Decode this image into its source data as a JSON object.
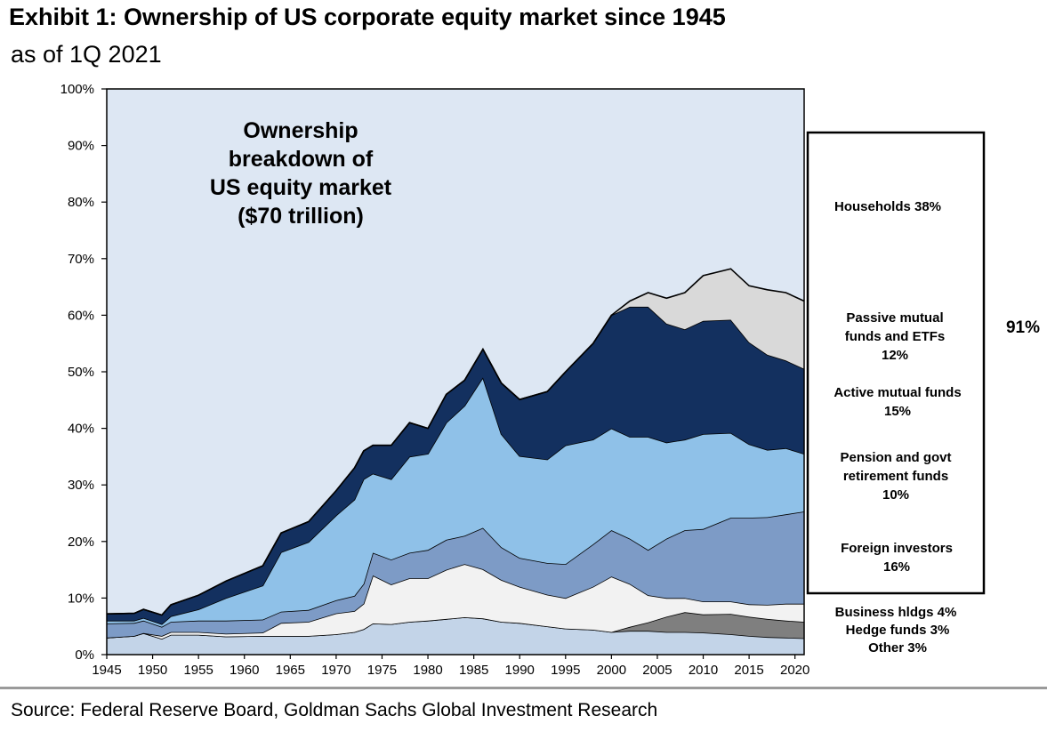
{
  "header": {
    "title": "Exhibit 1: Ownership of US corporate equity market since 1945",
    "subtitle": "as of 1Q 2021"
  },
  "source": "Source: Federal Reserve Board, Goldman Sachs Global Investment Research",
  "chart_data": {
    "type": "area",
    "stacked": true,
    "inset_text": [
      "Ownership",
      "breakdown  of",
      "US equity market",
      "($70 trillion)"
    ],
    "xlim": [
      1945,
      2021
    ],
    "ylim": [
      0,
      100
    ],
    "y_ticks": [
      "0%",
      "10%",
      "20%",
      "30%",
      "40%",
      "50%",
      "60%",
      "70%",
      "80%",
      "90%",
      "100%"
    ],
    "x_ticks": [
      "1945",
      "1950",
      "1955",
      "1960",
      "1965",
      "1970",
      "1975",
      "1980",
      "1985",
      "1990",
      "1995",
      "2000",
      "2005",
      "2010",
      "2015",
      "2020"
    ],
    "background_area": "Households 38%",
    "bracket": {
      "label": "91%"
    },
    "colors": {
      "plot_bg": "#dde7f3",
      "other": "#c3d4e8",
      "hedge_funds": "#7f7f7f",
      "business_hldgs": "#f2f2f2",
      "foreign": "#7d9bc6",
      "pension": "#8fc1e8",
      "active": "#13305f",
      "passive": "#d9d9d9"
    },
    "x": [
      1945,
      1948,
      1949,
      1951,
      1952,
      1955,
      1958,
      1962,
      1964,
      1967,
      1970,
      1972,
      1973,
      1974,
      1976,
      1978,
      1980,
      1982,
      1984,
      1986,
      1988,
      1990,
      1993,
      1995,
      1998,
      2000,
      2002,
      2004,
      2006,
      2008,
      2010,
      2013,
      2015,
      2017,
      2019,
      2021
    ],
    "series": [
      {
        "name": "Other 3%",
        "key": "other",
        "values": [
          3.0,
          3.3,
          3.8,
          2.8,
          3.5,
          3.5,
          3.2,
          3.3,
          3.3,
          3.3,
          3.6,
          4.0,
          4.5,
          5.5,
          5.4,
          5.8,
          6.0,
          6.3,
          6.6,
          6.4,
          5.8,
          5.6,
          5.0,
          4.6,
          4.4,
          4.0,
          4.2,
          4.2,
          4.0,
          4.0,
          3.9,
          3.6,
          3.3,
          3.1,
          3.0,
          2.9
        ]
      },
      {
        "name": "Hedge funds 3%",
        "key": "hedge_funds",
        "values": [
          0,
          0,
          0,
          0,
          0,
          0,
          0,
          0,
          0,
          0,
          0,
          0,
          0,
          0,
          0,
          0,
          0,
          0,
          0,
          0,
          0,
          0,
          0,
          0,
          0,
          0,
          0.7,
          1.5,
          2.7,
          3.5,
          3.2,
          3.6,
          3.4,
          3.2,
          3.0,
          2.9
        ]
      },
      {
        "name": "Business hldgs 4%",
        "key": "business_hldgs",
        "values": [
          0,
          0,
          0,
          0.5,
          0.5,
          0.5,
          0.5,
          0.6,
          2.3,
          2.5,
          3.7,
          3.7,
          4.5,
          8.5,
          7.0,
          7.7,
          7.5,
          8.7,
          9.4,
          8.7,
          7.4,
          6.4,
          5.6,
          5.4,
          7.6,
          9.8,
          7.6,
          4.8,
          3.3,
          2.5,
          2.3,
          2.2,
          2.2,
          2.5,
          3.0,
          3.2
        ]
      },
      {
        "name": "Foreign investors 16%",
        "key": "foreign",
        "values": [
          2.5,
          2.3,
          2.2,
          1.6,
          1.8,
          2.0,
          2.3,
          2.3,
          2.0,
          2.1,
          2.3,
          2.7,
          3.5,
          4.0,
          4.4,
          4.5,
          5.0,
          5.3,
          5.0,
          7.3,
          5.8,
          5.1,
          5.6,
          6.0,
          7.5,
          8.2,
          8.0,
          8.0,
          10.5,
          12.0,
          12.8,
          14.8,
          15.3,
          15.5,
          15.8,
          16.3
        ]
      },
      {
        "name": "Pension and govt retirement funds 10%",
        "key": "pension",
        "values": [
          0.5,
          0.4,
          0.5,
          0.5,
          1.0,
          2.0,
          4.0,
          6.0,
          10.5,
          12.0,
          15.0,
          17.0,
          18.5,
          14.0,
          14.2,
          17.0,
          17.0,
          20.7,
          23.0,
          26.6,
          20.0,
          18.0,
          18.3,
          21.0,
          18.5,
          18.0,
          18.0,
          20.0,
          17.0,
          16.0,
          16.8,
          15.0,
          13.0,
          11.9,
          11.7,
          10.2
        ]
      },
      {
        "name": "Active mutual funds 15%",
        "key": "active",
        "values": [
          1.2,
          1.3,
          1.5,
          1.6,
          2.0,
          2.5,
          3.0,
          3.5,
          3.4,
          3.6,
          4.4,
          5.6,
          5.0,
          5.0,
          6.0,
          6.0,
          4.5,
          5.0,
          4.5,
          5.0,
          9.0,
          10.0,
          12.0,
          13.0,
          17.0,
          20.0,
          23.0,
          23.0,
          21.0,
          19.5,
          20.0,
          20.0,
          18.0,
          16.8,
          15.5,
          15.0
        ]
      },
      {
        "name": "Passive mutual funds and ETFs 12%",
        "key": "passive",
        "values": [
          0,
          0,
          0,
          0,
          0,
          0,
          0,
          0,
          0,
          0,
          0,
          0,
          0,
          0,
          0,
          0,
          0,
          0,
          0,
          0,
          0,
          0,
          0,
          0,
          0,
          0,
          1.0,
          2.5,
          4.5,
          6.5,
          8.0,
          9.0,
          10.0,
          11.5,
          12.0,
          12.0
        ]
      }
    ]
  }
}
